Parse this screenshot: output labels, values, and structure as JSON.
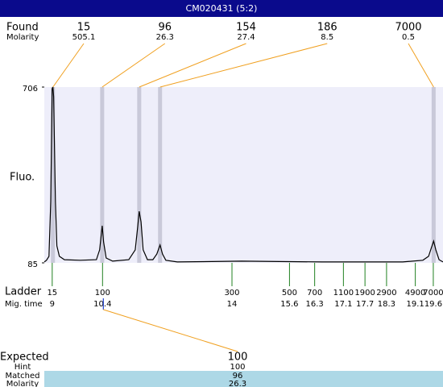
{
  "chart_data": {
    "type": "line",
    "title": "CM020431 (5:2)",
    "ylabel": "Fluo.",
    "color": "#000000",
    "ylim": [
      85,
      706
    ],
    "yticks": [
      85,
      706
    ],
    "xlim": [
      8.78,
      19.87
    ],
    "x": [
      8.78,
      8.84,
      8.91,
      8.96,
      9.0,
      9.02,
      9.04,
      9.09,
      9.13,
      9.2,
      9.34,
      9.78,
      10.23,
      10.32,
      10.39,
      10.43,
      10.5,
      10.68,
      11.13,
      11.31,
      11.38,
      11.42,
      11.47,
      11.53,
      11.65,
      11.8,
      11.91,
      12.0,
      12.07,
      12.16,
      12.48,
      14.27,
      16.51,
      18.75,
      19.31,
      19.47,
      19.54,
      19.61,
      19.67,
      19.76,
      19.87
    ],
    "values": [
      88,
      94,
      108,
      302,
      700,
      706,
      672,
      302,
      145,
      108,
      96,
      94,
      96,
      131,
      216,
      159,
      102,
      91,
      96,
      131,
      216,
      267,
      230,
      131,
      96,
      96,
      116,
      148,
      116,
      94,
      88,
      91,
      88,
      88,
      94,
      108,
      136,
      162,
      131,
      96,
      88
    ]
  },
  "found": {
    "label": "Found",
    "molarity_label": "Molarity",
    "sizes": [
      15,
      96,
      154,
      186,
      7000
    ],
    "molarity": [
      505.1,
      26.3,
      27.4,
      8.5,
      0.5
    ],
    "mig_times": [
      9.02,
      10.39,
      11.42,
      12.0,
      19.61
    ]
  },
  "ladder": {
    "label": "Ladder",
    "time_label": "Mig. time",
    "sizes": [
      15,
      100,
      300,
      500,
      700,
      1100,
      1900,
      2900,
      4900,
      7000
    ],
    "mig_times": [
      9,
      10.4,
      14,
      15.6,
      16.3,
      17.1,
      17.7,
      18.3,
      19.1,
      19.6
    ]
  },
  "expected": {
    "label": "Expected",
    "size": 100,
    "hint_label": "Hint",
    "hint": 100,
    "matched_label": "Matched",
    "matched": 96,
    "molarity_label": "Molarity",
    "molarity": 26.3
  }
}
